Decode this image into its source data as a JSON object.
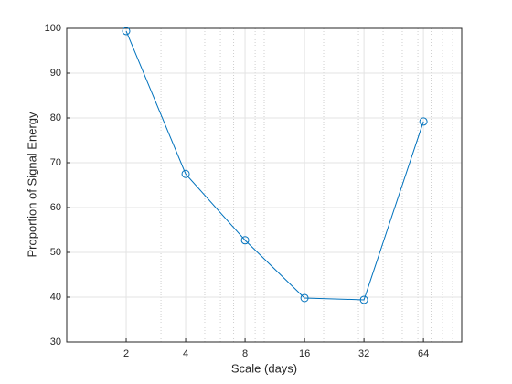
{
  "chart_data": {
    "type": "line",
    "xlabel": "Scale (days)",
    "ylabel": "Proportion of Signal Energy",
    "x": [
      2,
      4,
      8,
      16,
      32,
      64
    ],
    "series": [
      {
        "color": "#0072bd",
        "marker": "circle",
        "values": [
          99.4,
          67.5,
          52.7,
          39.8,
          39.4,
          79.2
        ]
      }
    ],
    "xscale": "log",
    "xlim": [
      1,
      100
    ],
    "xticks": [
      2,
      4,
      8,
      16,
      32,
      64
    ],
    "xminorticks": [
      3,
      5,
      6,
      7,
      9,
      10,
      20,
      30,
      40,
      50,
      60,
      70,
      80,
      90
    ],
    "ylim": [
      30,
      100
    ],
    "yticks": [
      30,
      40,
      50,
      60,
      70,
      80,
      90,
      100
    ],
    "grid": true
  }
}
